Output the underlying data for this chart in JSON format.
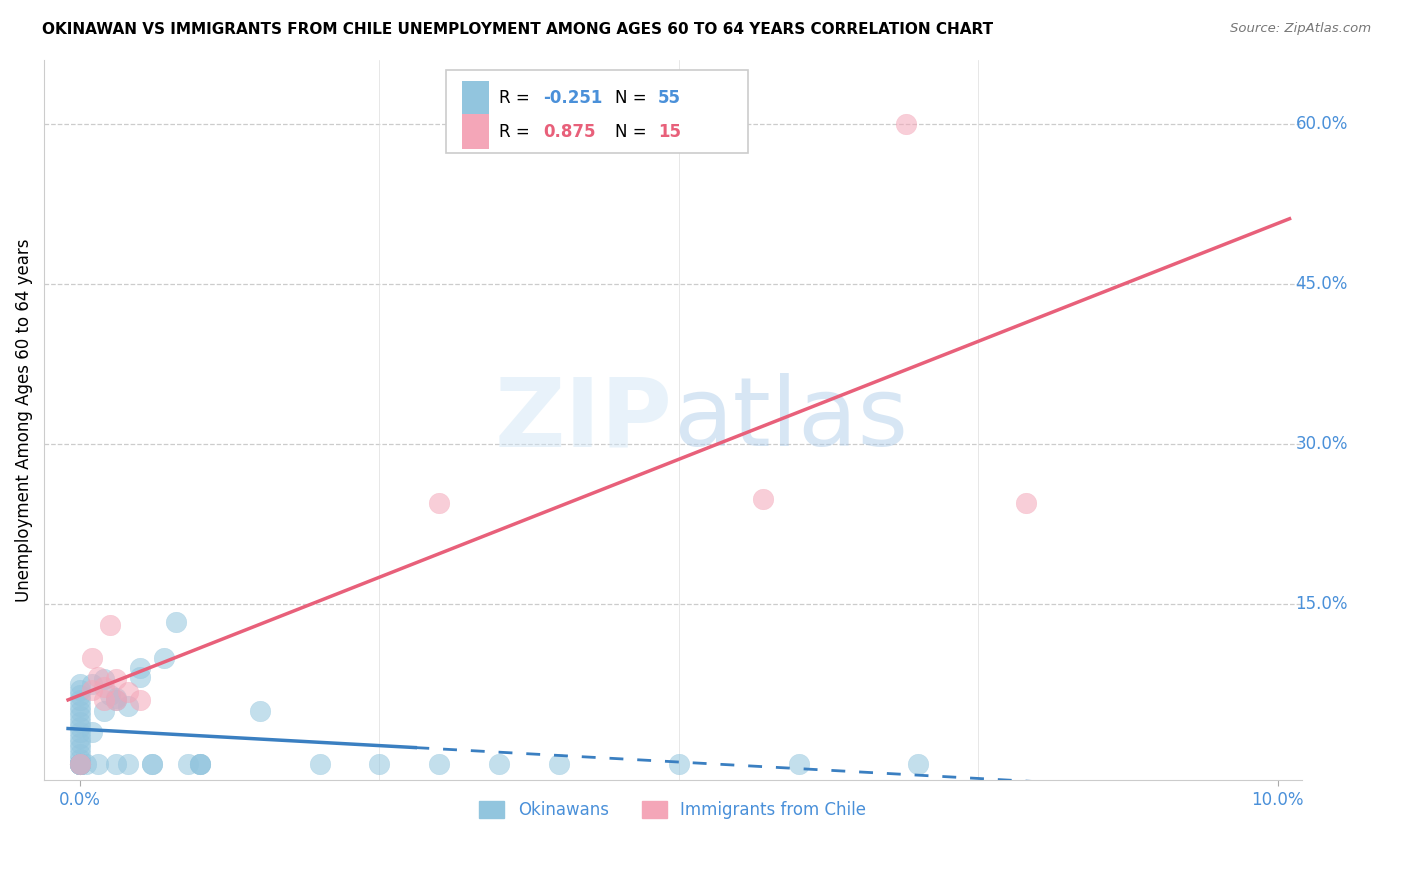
{
  "title": "OKINAWAN VS IMMIGRANTS FROM CHILE UNEMPLOYMENT AMONG AGES 60 TO 64 YEARS CORRELATION CHART",
  "source": "Source: ZipAtlas.com",
  "ylabel_label": "Unemployment Among Ages 60 to 64 years",
  "right_ytick_values": [
    0.15,
    0.3,
    0.45,
    0.6
  ],
  "right_ytick_labels": [
    "15.0%",
    "30.0%",
    "45.0%",
    "60.0%"
  ],
  "legend_blue_R": "-0.251",
  "legend_blue_N": "55",
  "legend_pink_R": "0.875",
  "legend_pink_N": "15",
  "watermark": "ZIPatlas",
  "blue_color": "#92c5de",
  "pink_color": "#f4a6b8",
  "blue_line_color": "#3a7fc1",
  "pink_line_color": "#e8607a",
  "label_color": "#4a90d9",
  "blue_x": [
    0.0,
    0.0,
    0.0,
    0.0,
    0.0,
    0.0,
    0.0,
    0.0,
    0.0,
    0.0,
    0.0,
    0.0,
    0.0,
    0.0,
    0.0,
    0.0,
    0.0,
    0.0,
    0.0,
    0.0,
    0.0,
    0.0,
    0.0,
    0.0,
    0.0005,
    0.001,
    0.001,
    0.0015,
    0.002,
    0.002,
    0.0025,
    0.003,
    0.003,
    0.003,
    0.004,
    0.004,
    0.005,
    0.005,
    0.006,
    0.006,
    0.007,
    0.008,
    0.009,
    0.01,
    0.01,
    0.01,
    0.015,
    0.02,
    0.025,
    0.03,
    0.035,
    0.04,
    0.05,
    0.06,
    0.07
  ],
  "blue_y": [
    0.0,
    0.005,
    0.01,
    0.015,
    0.02,
    0.025,
    0.03,
    0.035,
    0.04,
    0.045,
    0.05,
    0.055,
    0.06,
    0.065,
    0.07,
    0.075,
    0.0,
    0.0,
    0.0,
    0.0,
    0.0,
    0.0,
    0.0,
    0.0,
    0.0,
    0.03,
    0.075,
    0.0,
    0.05,
    0.08,
    0.065,
    0.06,
    0.062,
    0.0,
    0.0,
    0.055,
    0.09,
    0.082,
    0.0,
    0.0,
    0.1,
    0.133,
    0.0,
    0.0,
    0.0,
    0.0,
    0.05,
    0.0,
    0.0,
    0.0,
    0.0,
    0.0,
    0.0,
    0.0,
    0.0
  ],
  "chile_x": [
    0.0,
    0.001,
    0.001,
    0.0015,
    0.002,
    0.002,
    0.0025,
    0.003,
    0.003,
    0.004,
    0.005,
    0.03,
    0.057,
    0.069,
    0.079
  ],
  "chile_y": [
    0.0,
    0.07,
    0.1,
    0.082,
    0.06,
    0.072,
    0.13,
    0.08,
    0.06,
    0.068,
    0.06,
    0.245,
    0.248,
    0.6,
    0.245
  ],
  "x_min": 0.0,
  "x_max": 0.1,
  "y_min": -0.015,
  "y_max": 0.66
}
